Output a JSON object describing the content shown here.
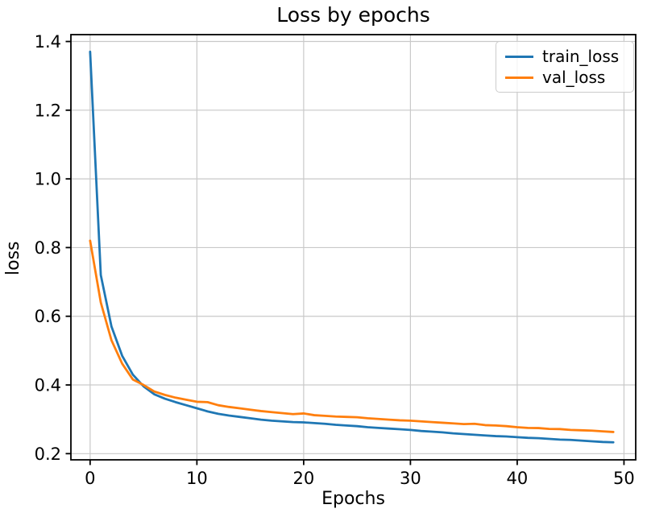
{
  "figure": {
    "title": "Loss by epochs"
  },
  "chart_data": {
    "type": "line",
    "title": "Loss by epochs",
    "xlabel": "Epochs",
    "ylabel": "loss",
    "x": [
      0,
      1,
      2,
      3,
      4,
      5,
      6,
      7,
      8,
      9,
      10,
      11,
      12,
      13,
      14,
      15,
      16,
      17,
      18,
      19,
      20,
      21,
      22,
      23,
      24,
      25,
      26,
      27,
      28,
      29,
      30,
      31,
      32,
      33,
      34,
      35,
      36,
      37,
      38,
      39,
      40,
      41,
      42,
      43,
      44,
      45,
      46,
      47,
      48,
      49
    ],
    "series": [
      {
        "name": "train_loss",
        "color": "#1f77b4",
        "values": [
          1.37,
          0.72,
          0.57,
          0.485,
          0.43,
          0.396,
          0.373,
          0.36,
          0.35,
          0.341,
          0.332,
          0.323,
          0.316,
          0.311,
          0.307,
          0.303,
          0.299,
          0.296,
          0.294,
          0.292,
          0.291,
          0.289,
          0.287,
          0.284,
          0.282,
          0.28,
          0.277,
          0.275,
          0.273,
          0.271,
          0.269,
          0.266,
          0.264,
          0.262,
          0.259,
          0.257,
          0.255,
          0.253,
          0.251,
          0.25,
          0.248,
          0.246,
          0.245,
          0.243,
          0.241,
          0.24,
          0.238,
          0.236,
          0.234,
          0.233
        ]
      },
      {
        "name": "val_loss",
        "color": "#ff7f0e",
        "values": [
          0.82,
          0.64,
          0.53,
          0.462,
          0.416,
          0.4,
          0.381,
          0.371,
          0.363,
          0.357,
          0.351,
          0.35,
          0.341,
          0.336,
          0.332,
          0.328,
          0.324,
          0.321,
          0.318,
          0.315,
          0.317,
          0.312,
          0.31,
          0.308,
          0.307,
          0.306,
          0.303,
          0.301,
          0.299,
          0.297,
          0.296,
          0.294,
          0.292,
          0.29,
          0.288,
          0.286,
          0.287,
          0.283,
          0.282,
          0.28,
          0.277,
          0.275,
          0.2745,
          0.272,
          0.2715,
          0.269,
          0.268,
          0.267,
          0.265,
          0.263
        ]
      }
    ],
    "xticks": [
      0,
      10,
      20,
      30,
      40,
      50
    ],
    "yticks": [
      0.2,
      0.4,
      0.6,
      0.8,
      1.0,
      1.2,
      1.4
    ],
    "xlim": [
      -1.8,
      51.1
    ],
    "ylim": [
      0.182,
      1.42
    ],
    "grid": true,
    "legend_position": "upper right",
    "grid_color": "#c9c9c9",
    "spine_color": "#000000"
  }
}
